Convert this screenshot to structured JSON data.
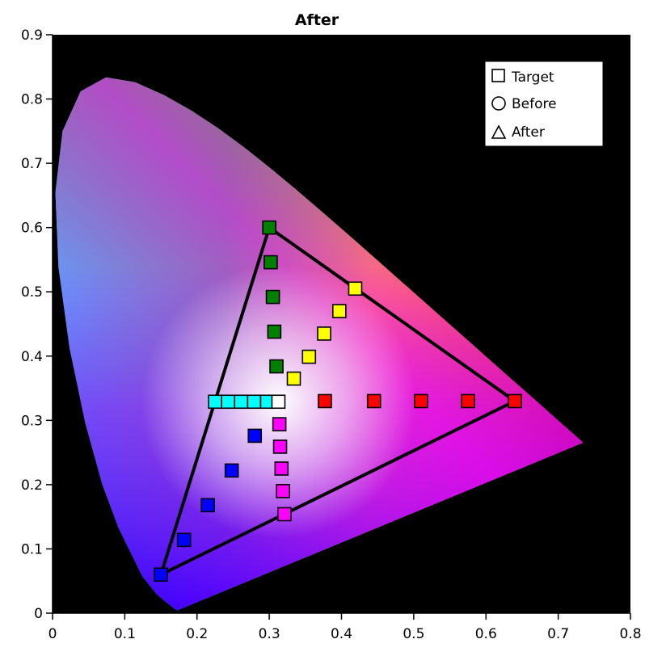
{
  "chart_data": {
    "type": "scatter",
    "title": "After",
    "xlabel": "",
    "ylabel": "",
    "xlim": [
      0,
      0.8
    ],
    "ylim": [
      0,
      0.9
    ],
    "x_ticks": [
      0,
      0.1,
      0.2,
      0.3,
      0.4,
      0.5,
      0.6,
      0.7,
      0.8
    ],
    "y_ticks": [
      0,
      0.1,
      0.2,
      0.3,
      0.4,
      0.5,
      0.6,
      0.7,
      0.8,
      0.9
    ],
    "x_tick_labels": [
      "0",
      "0.1",
      "0.2",
      "0.3",
      "0.4",
      "0.5",
      "0.6",
      "0.7",
      "0.8"
    ],
    "y_tick_labels": [
      "0",
      "0.1",
      "0.2",
      "0.3",
      "0.4",
      "0.5",
      "0.6",
      "0.7",
      "0.8",
      "0.9"
    ],
    "grid": false,
    "background": "#000000",
    "legend": {
      "placement": "top-right",
      "entries": [
        {
          "marker": "square",
          "label": "Target"
        },
        {
          "marker": "circle",
          "label": "Before"
        },
        {
          "marker": "triangle",
          "label": "After"
        }
      ]
    },
    "gamut_triangle": [
      [
        0.64,
        0.33
      ],
      [
        0.3,
        0.6
      ],
      [
        0.15,
        0.06
      ]
    ],
    "red_primary_hull_point": [
      0.735,
      0.265
    ],
    "series": [
      {
        "color": "#ff0000",
        "points": [
          [
            0.64,
            0.33
          ],
          [
            0.575,
            0.33
          ],
          [
            0.51,
            0.33
          ],
          [
            0.445,
            0.33
          ],
          [
            0.377,
            0.33
          ]
        ]
      },
      {
        "color": "#ffff00",
        "points": [
          [
            0.419,
            0.505
          ],
          [
            0.397,
            0.47
          ],
          [
            0.376,
            0.435
          ],
          [
            0.355,
            0.399
          ],
          [
            0.334,
            0.365
          ]
        ]
      },
      {
        "color": "#008000",
        "points": [
          [
            0.3,
            0.6
          ],
          [
            0.302,
            0.546
          ],
          [
            0.305,
            0.492
          ],
          [
            0.307,
            0.438
          ],
          [
            0.31,
            0.384
          ]
        ]
      },
      {
        "color": "#00ffff",
        "points": [
          [
            0.225,
            0.329
          ],
          [
            0.243,
            0.329
          ],
          [
            0.261,
            0.329
          ],
          [
            0.279,
            0.329
          ],
          [
            0.297,
            0.329
          ]
        ]
      },
      {
        "color": "#0000ff",
        "points": [
          [
            0.15,
            0.06
          ],
          [
            0.182,
            0.114
          ],
          [
            0.215,
            0.168
          ],
          [
            0.248,
            0.222
          ],
          [
            0.28,
            0.276
          ]
        ]
      },
      {
        "color": "#ff00ff",
        "points": [
          [
            0.321,
            0.154
          ],
          [
            0.319,
            0.19
          ],
          [
            0.317,
            0.225
          ],
          [
            0.315,
            0.259
          ],
          [
            0.314,
            0.294
          ]
        ]
      },
      {
        "color": "#ffffff",
        "points": [
          [
            0.3127,
            0.329
          ]
        ]
      }
    ]
  }
}
